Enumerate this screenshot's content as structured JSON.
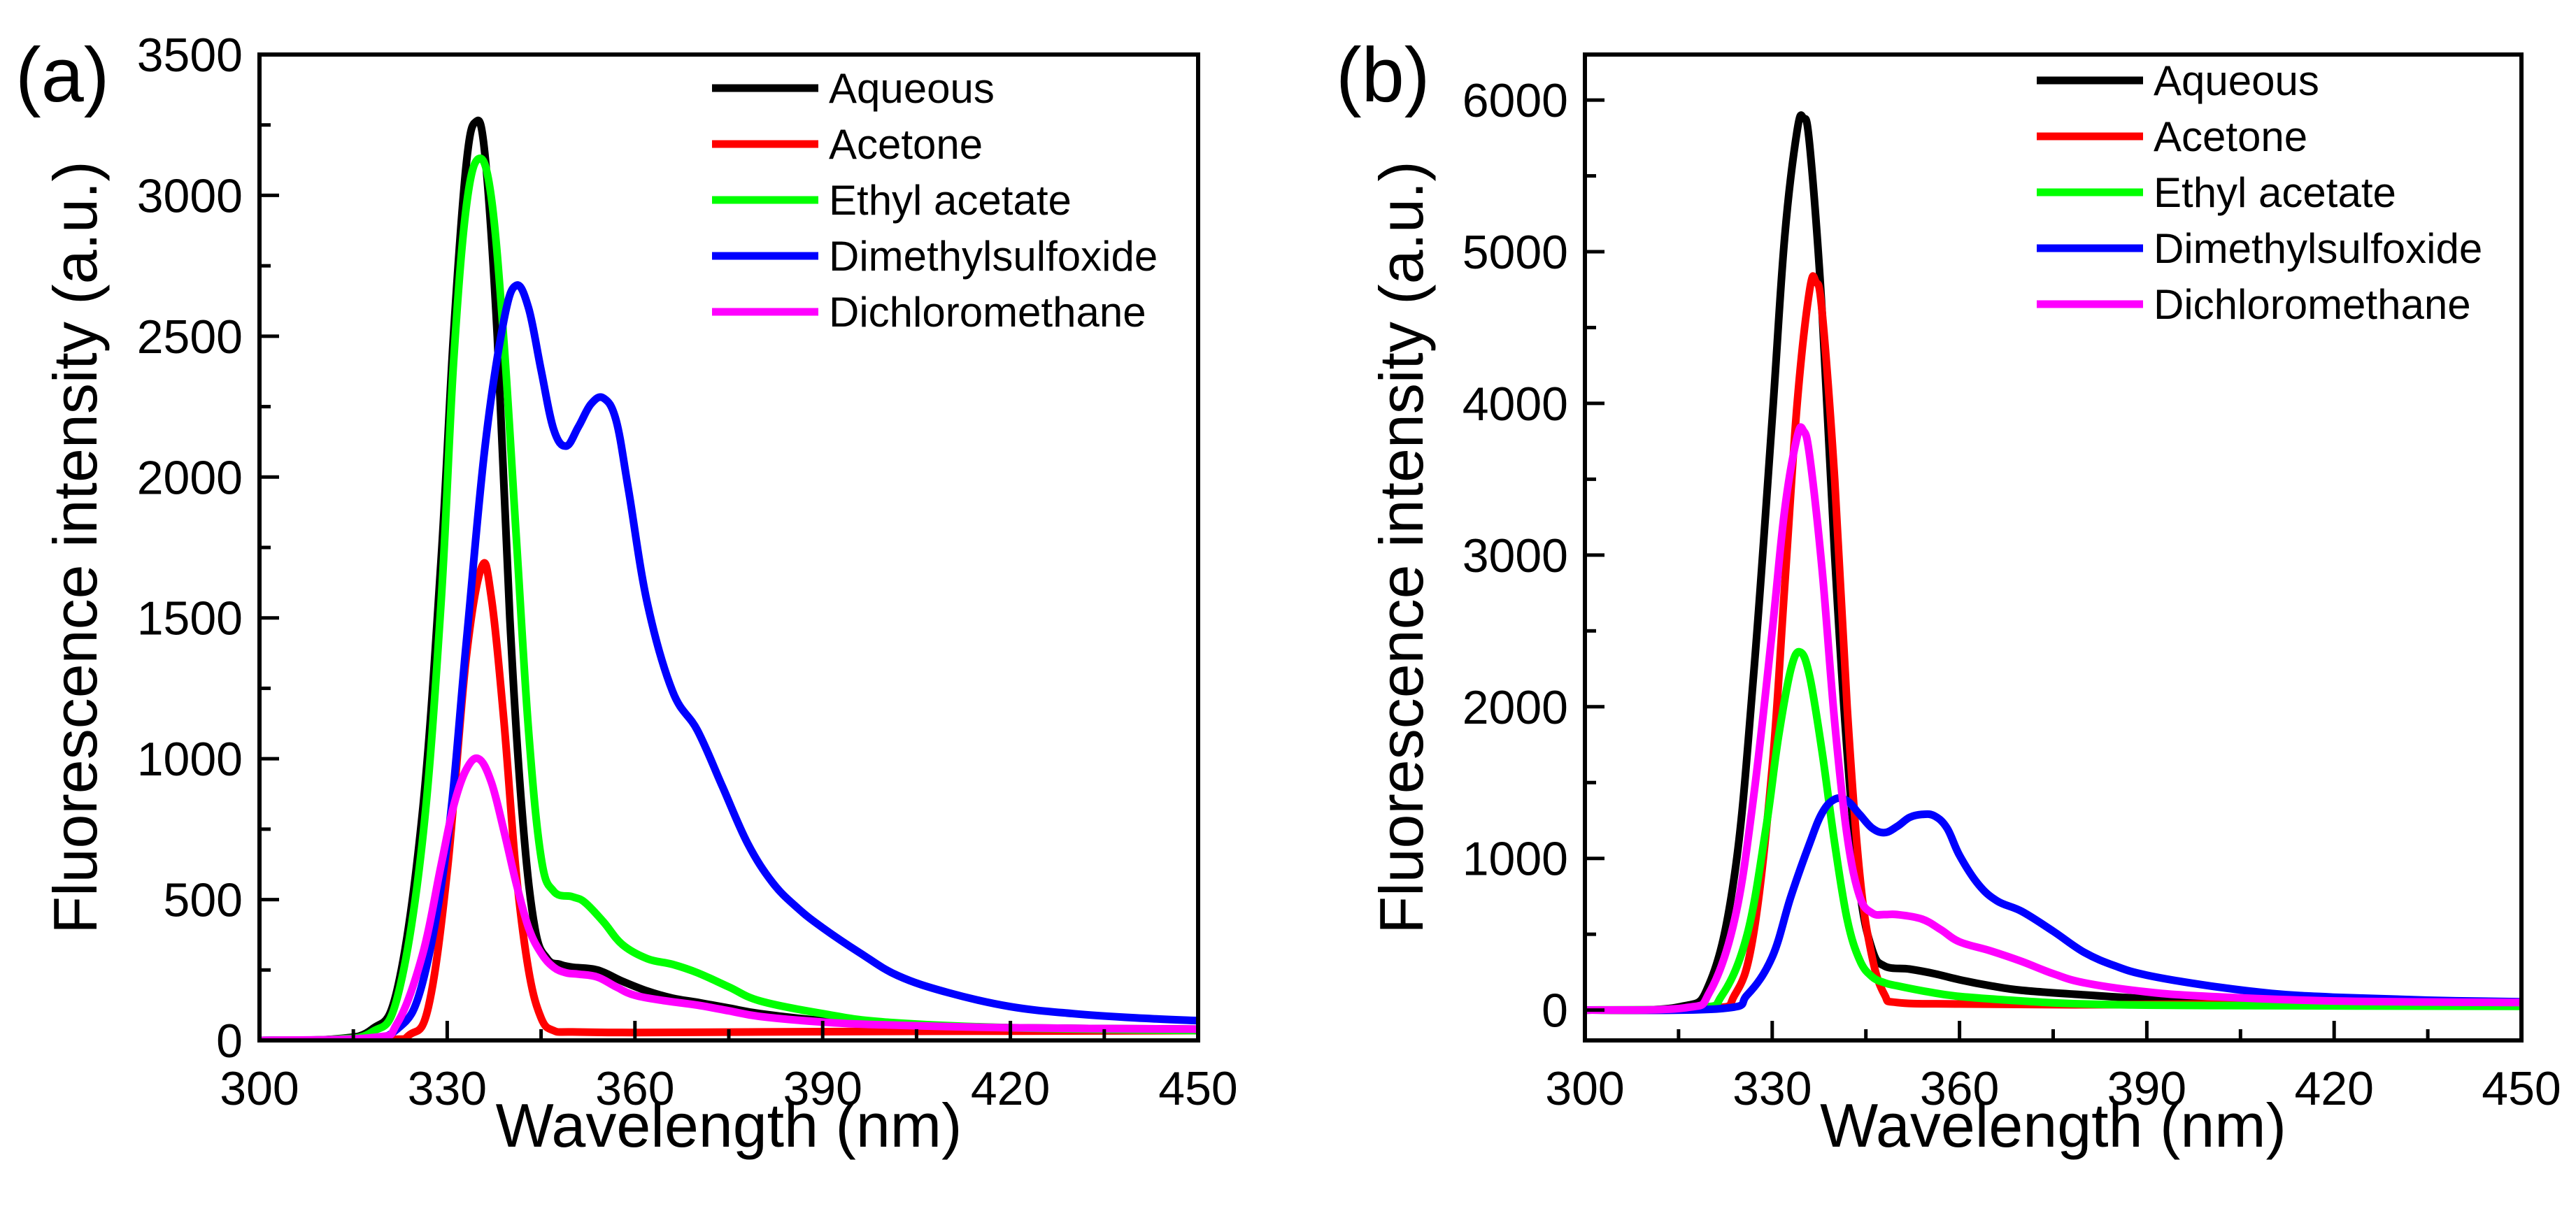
{
  "chart_data": [
    {
      "type": "line",
      "panel_label": "(a)",
      "xlabel": "Wavelength (nm)",
      "ylabel": "Fluorescence intensity (a.u.)",
      "xlim": [
        300,
        450
      ],
      "ylim": [
        0,
        3500
      ],
      "xticks": [
        300,
        330,
        360,
        390,
        420,
        450
      ],
      "yticks": [
        0,
        500,
        1000,
        1500,
        2000,
        2500,
        3000,
        3500
      ],
      "legend_position": "top-right",
      "series": [
        {
          "name": "Aqueous",
          "color": "#000000",
          "x": [
            300,
            312,
            318,
            322,
            326,
            329,
            331,
            333,
            334.5,
            336,
            338,
            340,
            342,
            344,
            346,
            348,
            350,
            354,
            358,
            362,
            366,
            370,
            375,
            380,
            390,
            400,
            420,
            450
          ],
          "y": [
            0,
            5,
            40,
            180,
            800,
            1700,
            2500,
            3100,
            3260,
            3150,
            2500,
            1500,
            800,
            400,
            290,
            270,
            260,
            250,
            210,
            175,
            150,
            135,
            115,
            95,
            70,
            55,
            45,
            40
          ]
        },
        {
          "name": "Acetone",
          "color": "#ff0000",
          "x": [
            300,
            320,
            324,
            327,
            330,
            333,
            335.5,
            337,
            339,
            341,
            343,
            345,
            347,
            350,
            360,
            380,
            400,
            420,
            450
          ],
          "y": [
            0,
            3,
            20,
            120,
            600,
            1350,
            1680,
            1580,
            1150,
            600,
            250,
            80,
            35,
            30,
            28,
            30,
            32,
            33,
            35
          ]
        },
        {
          "name": "Ethyl acetate",
          "color": "#00ff00",
          "x": [
            300,
            312,
            318,
            322,
            326,
            329,
            331,
            333,
            335,
            337,
            339,
            341,
            343,
            345,
            347,
            350,
            352,
            355,
            358,
            362,
            366,
            370,
            375,
            380,
            390,
            400,
            420,
            450
          ],
          "y": [
            0,
            4,
            30,
            150,
            700,
            1550,
            2400,
            2950,
            3130,
            3000,
            2500,
            1800,
            1100,
            650,
            530,
            510,
            490,
            420,
            340,
            290,
            270,
            240,
            190,
            140,
            95,
            65,
            45,
            35
          ]
        },
        {
          "name": "Dimethylsulfoxide",
          "color": "#0000ff",
          "x": [
            300,
            316,
            322,
            326,
            330,
            333,
            336,
            339,
            341,
            343,
            345,
            347,
            349,
            351,
            353,
            355,
            357,
            359,
            362,
            366,
            370,
            374,
            378,
            382,
            386,
            390,
            396,
            402,
            410,
            420,
            430,
            440,
            450
          ],
          "y": [
            0,
            5,
            40,
            200,
            700,
            1400,
            2100,
            2550,
            2680,
            2600,
            2380,
            2170,
            2110,
            2180,
            2260,
            2280,
            2200,
            1950,
            1550,
            1240,
            1100,
            900,
            700,
            560,
            470,
            400,
            310,
            230,
            170,
            120,
            95,
            80,
            70
          ]
        },
        {
          "name": "Dichloromethane",
          "color": "#ff00ff",
          "x": [
            300,
            318,
            322,
            326,
            329,
            331,
            333,
            335,
            337,
            339,
            341,
            343,
            345,
            347,
            349,
            351,
            354,
            357,
            360,
            365,
            370,
            375,
            380,
            390,
            400,
            420,
            450
          ],
          "y": [
            0,
            10,
            60,
            300,
            620,
            830,
            960,
            1000,
            920,
            750,
            560,
            400,
            310,
            260,
            240,
            235,
            225,
            190,
            160,
            140,
            125,
            105,
            85,
            65,
            55,
            45,
            40
          ]
        }
      ]
    },
    {
      "type": "line",
      "panel_label": "(b)",
      "xlabel": "Wavelength (nm)",
      "ylabel": "Fluorescence intensity (a.u.)",
      "xlim": [
        300,
        450
      ],
      "ylim": [
        -200,
        6300
      ],
      "xticks": [
        300,
        330,
        360,
        390,
        420,
        450
      ],
      "yticks": [
        0,
        1000,
        2000,
        3000,
        4000,
        5000,
        6000
      ],
      "legend_position": "top-right",
      "series": [
        {
          "name": "Aqueous",
          "color": "#000000",
          "x": [
            300,
            315,
            320,
            324,
            327,
            330,
            332,
            334,
            335,
            336,
            338,
            340,
            342,
            344,
            346,
            348,
            352,
            356,
            360,
            365,
            370,
            380,
            390,
            400,
            420,
            450
          ],
          "y": [
            0,
            20,
            180,
            900,
            2200,
            3900,
            5100,
            5800,
            5880,
            5700,
            4600,
            3000,
            1700,
            800,
            400,
            290,
            270,
            240,
            200,
            160,
            130,
            100,
            75,
            60,
            45,
            40
          ]
        },
        {
          "name": "Acetone",
          "color": "#ff0000",
          "x": [
            300,
            320,
            324,
            327,
            330,
            332,
            334,
            336,
            337,
            338,
            340,
            342,
            344,
            346,
            348,
            350,
            360,
            380,
            400,
            420,
            450
          ],
          "y": [
            0,
            10,
            100,
            500,
            1600,
            2800,
            4000,
            4750,
            4800,
            4600,
            3500,
            2000,
            900,
            350,
            100,
            50,
            40,
            35,
            40,
            45,
            50
          ]
        },
        {
          "name": "Ethyl acetate",
          "color": "#00ff00",
          "x": [
            300,
            318,
            322,
            326,
            329,
            331,
            333,
            334.5,
            336,
            338,
            340,
            342,
            344,
            346,
            348,
            350,
            355,
            360,
            370,
            380,
            400,
            450
          ],
          "y": [
            0,
            15,
            100,
            500,
            1200,
            1800,
            2250,
            2360,
            2200,
            1700,
            1100,
            600,
            330,
            220,
            180,
            160,
            120,
            90,
            60,
            40,
            30,
            25
          ]
        },
        {
          "name": "Dimethylsulfoxide",
          "color": "#0000ff",
          "x": [
            300,
            322,
            326,
            330,
            333,
            336,
            338,
            340,
            342,
            344,
            346,
            348,
            350,
            352,
            354,
            356,
            358,
            360,
            363,
            366,
            370,
            375,
            380,
            385,
            390,
            400,
            410,
            420,
            435,
            450
          ],
          "y": [
            0,
            10,
            100,
            350,
            750,
            1100,
            1300,
            1390,
            1380,
            1290,
            1200,
            1170,
            1210,
            1270,
            1290,
            1280,
            1200,
            1020,
            830,
            720,
            650,
            520,
            380,
            290,
            230,
            160,
            110,
            85,
            65,
            55
          ]
        },
        {
          "name": "Dichloromethane",
          "color": "#ff00ff",
          "x": [
            300,
            316,
            320,
            324,
            327,
            330,
            332,
            334,
            335,
            336,
            338,
            340,
            342,
            344,
            346,
            348,
            350,
            354,
            357,
            360,
            365,
            370,
            375,
            380,
            390,
            400,
            420,
            450
          ],
          "y": [
            0,
            15,
            120,
            600,
            1400,
            2500,
            3300,
            3780,
            3820,
            3650,
            2900,
            1900,
            1150,
            750,
            640,
            630,
            630,
            600,
            530,
            450,
            390,
            320,
            240,
            180,
            120,
            90,
            60,
            50
          ]
        }
      ]
    }
  ]
}
